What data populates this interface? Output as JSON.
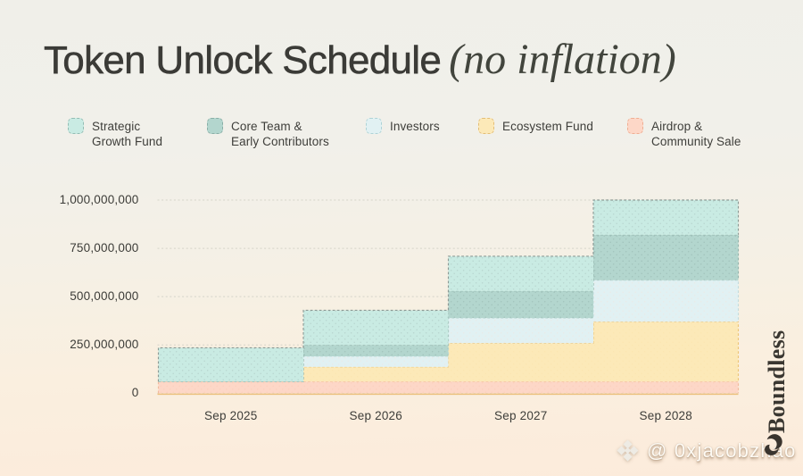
{
  "title": {
    "main": "Token Unlock Schedule",
    "accent": "(no inflation)"
  },
  "legend": [
    {
      "label": "Strategic\nGrowth Fund",
      "color": "#c9ebe3",
      "border": "#94bcb3"
    },
    {
      "label": "Core Team &\nEarly Contributors",
      "color": "#b3d6ce",
      "border": "#8aaea6"
    },
    {
      "label": "Investors",
      "color": "#e1f1f3",
      "border": "#aed3d6"
    },
    {
      "label": "Ecosystem Fund",
      "color": "#fce9b8",
      "border": "#e3bd76"
    },
    {
      "label": "Airdrop &\nCommunity Sale",
      "color": "#fdd7c7",
      "border": "#efae92"
    }
  ],
  "chart_data": {
    "type": "area",
    "variant": "stacked-step",
    "x": [
      "Sep 2025",
      "Sep 2026",
      "Sep 2027",
      "Sep 2028"
    ],
    "series": [
      {
        "name": "Strategic Growth Fund",
        "values": [
          175000000,
          180000000,
          180000000,
          180000000
        ],
        "fill": "#c9ebe3",
        "dot": "#a4bfb9",
        "stroke": "#8d9a95"
      },
      {
        "name": "Core Team & Early Contributors",
        "values": [
          0,
          58000000,
          140000000,
          235000000
        ],
        "fill": "#b3d6ce",
        "dot": "#92b2ab",
        "stroke": "#95b5ad"
      },
      {
        "name": "Investors",
        "values": [
          0,
          55000000,
          130000000,
          215000000
        ],
        "fill": "#e1f1f3",
        "dot": "#f2e3da",
        "stroke": "#c3dcdd"
      },
      {
        "name": "Ecosystem Fund",
        "values": [
          0,
          76000000,
          199000000,
          310000000
        ],
        "fill": "#fce9b8",
        "dot": "#f4d28b",
        "stroke": "#edc577"
      },
      {
        "name": "Airdrop & Community Sale",
        "values": [
          60000000,
          60000000,
          60000000,
          60000000
        ],
        "fill": "#fdd7c7",
        "dot": "#f9c2a8",
        "stroke": "#f3bb9e"
      }
    ],
    "stack_order_bottom_to_top": [
      "Airdrop & Community Sale",
      "Ecosystem Fund",
      "Investors",
      "Core Team & Early Contributors",
      "Strategic Growth Fund"
    ],
    "totals_by_x": [
      235000000,
      429000000,
      709000000,
      1000000000
    ],
    "y_ticks": [
      "0",
      "250,000,000",
      "500,000,000",
      "750,000,000",
      "1,000,000,000"
    ],
    "y_tick_values": [
      0,
      250000000,
      500000000,
      750000000,
      1000000000
    ],
    "ylim": [
      0,
      1000000000
    ],
    "grid": "horizontal-dashed",
    "legend_position": "top"
  },
  "brand": {
    "name": "Boundless"
  },
  "watermark": {
    "handle": "@ 0xjacobzhao",
    "icon": "binance-diamond-logo"
  }
}
